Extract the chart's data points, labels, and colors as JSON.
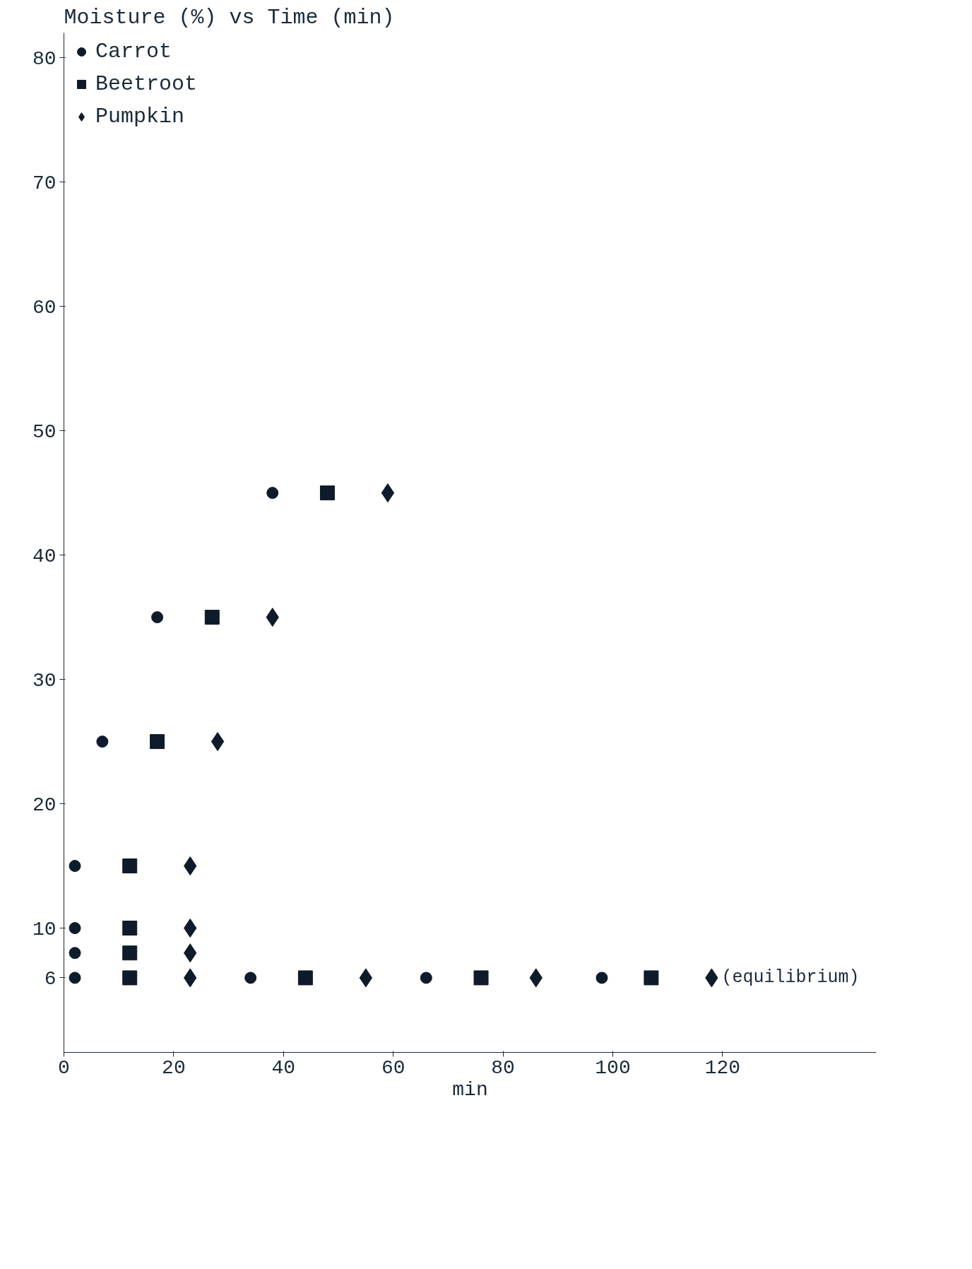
{
  "chart_data": {
    "type": "scatter",
    "title": "Moisture (%) vs Time (min)",
    "xlabel": "min",
    "xlim": [
      0,
      148
    ],
    "ylim": [
      0,
      82
    ],
    "xticks": [
      0,
      20,
      40,
      60,
      80,
      100,
      120
    ],
    "yticks": [
      6,
      10,
      20,
      30,
      40,
      50,
      60,
      70,
      80
    ],
    "grid": false,
    "legend": "top left",
    "series": [
      {
        "name": "Carrot",
        "color": "#0d1b2a",
        "marker": "circle",
        "x": [
          2,
          34,
          66,
          98,
          2,
          2,
          2,
          7,
          17,
          38
        ],
        "values": [
          6,
          6,
          6,
          6,
          8,
          10,
          15,
          25,
          35,
          45
        ]
      },
      {
        "name": "Beetroot",
        "color": "#0d1b2a",
        "marker": "square",
        "x": [
          12,
          44,
          76,
          107,
          12,
          12,
          12,
          17,
          27,
          48
        ],
        "values": [
          6,
          6,
          6,
          6,
          8,
          10,
          15,
          25,
          35,
          45
        ]
      },
      {
        "name": "Pumpkin",
        "color": "#0d1b2a",
        "marker": "diamond",
        "x": [
          23,
          55,
          86,
          118,
          23,
          23,
          23,
          28,
          38,
          59
        ],
        "values": [
          6,
          6,
          6,
          6,
          8,
          10,
          15,
          25,
          35,
          45
        ]
      }
    ],
    "annotations": [
      "(equilibrium)"
    ]
  }
}
